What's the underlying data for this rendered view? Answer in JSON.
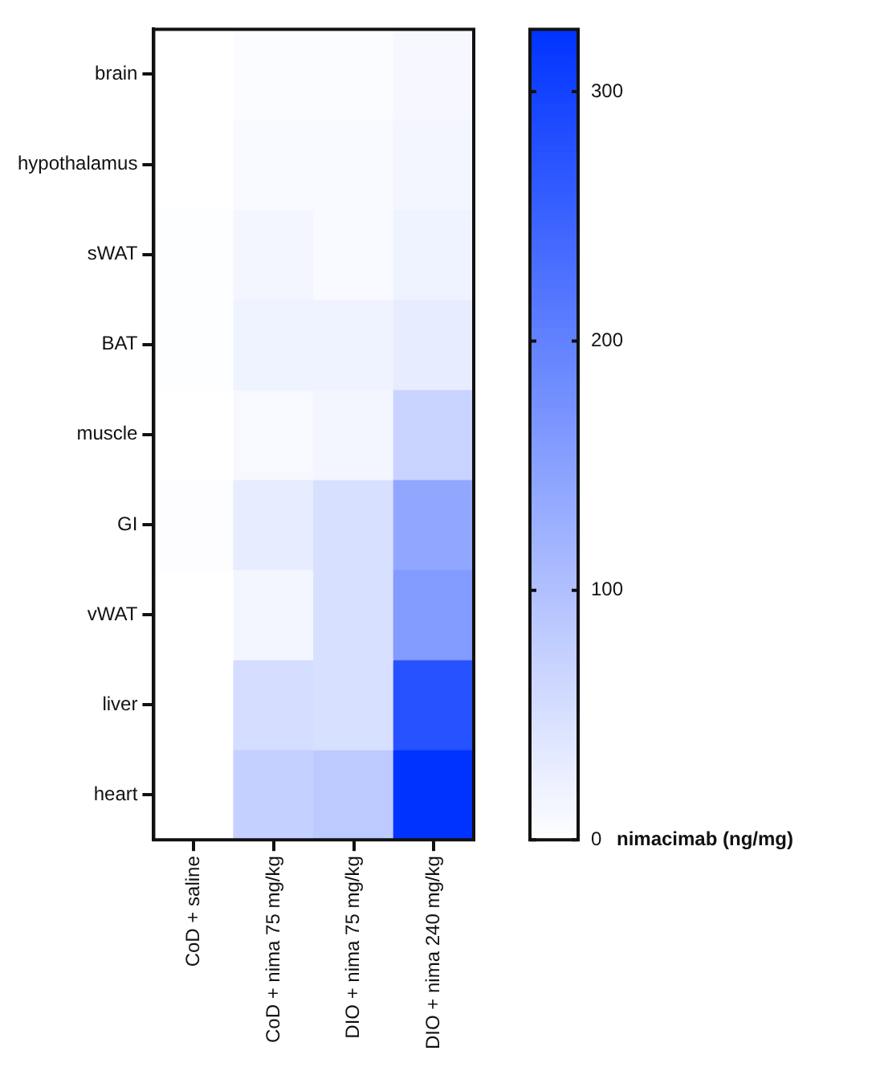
{
  "chart_data": {
    "type": "heatmap",
    "categories": [
      "CoD + saline",
      "CoD + nima 75 mg/kg",
      "DIO + nima 75 mg/kg",
      "DIO + nima 240 mg/kg"
    ],
    "y_categories": [
      "brain",
      "hypothalamus",
      "sWAT",
      "BAT",
      "muscle",
      "GI",
      "vWAT",
      "liver",
      "heart"
    ],
    "cells": [
      [
        0,
        5,
        5,
        12
      ],
      [
        0,
        8,
        8,
        15
      ],
      [
        2,
        15,
        8,
        20
      ],
      [
        2,
        20,
        20,
        30
      ],
      [
        0,
        10,
        15,
        70
      ],
      [
        3,
        30,
        50,
        140
      ],
      [
        0,
        15,
        50,
        160
      ],
      [
        0,
        55,
        50,
        275
      ],
      [
        0,
        75,
        85,
        325
      ]
    ],
    "clim": [
      0,
      325
    ],
    "cticks": [
      0,
      100,
      200,
      300
    ],
    "clabel": "nimacimab (ng/mg)"
  }
}
